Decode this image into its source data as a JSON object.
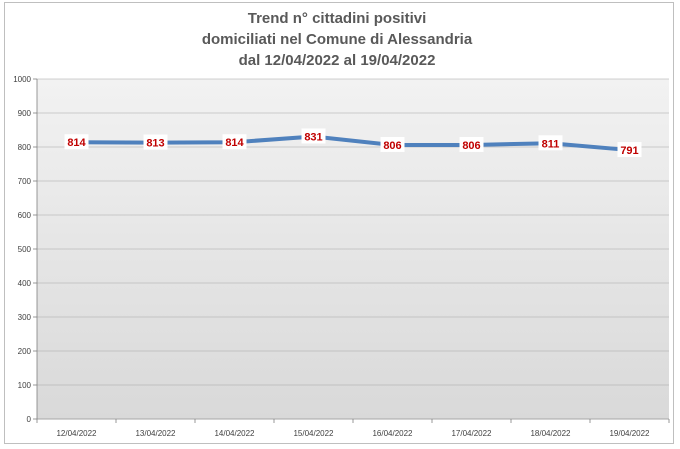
{
  "chart_data": {
    "type": "line",
    "title_lines": [
      "Trend n° cittadini positivi",
      "domiciliati nel Comune di Alessandria",
      "dal 12/04/2022 al 19/04/2022"
    ],
    "xlabel": "",
    "ylabel": "",
    "categories": [
      "12/04/2022",
      "13/04/2022",
      "14/04/2022",
      "15/04/2022",
      "16/04/2022",
      "17/04/2022",
      "18/04/2022",
      "19/04/2022"
    ],
    "series": [
      {
        "values": [
          814,
          813,
          814,
          831,
          806,
          806,
          811,
          791
        ]
      }
    ],
    "ylim": [
      0,
      1000
    ],
    "yticks": [
      0,
      100,
      200,
      300,
      400,
      500,
      600,
      700,
      800,
      900,
      1000
    ],
    "grid": true,
    "legend": "none",
    "colors": {
      "line": "#4f81bd",
      "label_text": "#c00000",
      "plot_bg_top": "#f2f2f2",
      "plot_bg_bottom": "#d9d9d9",
      "grid": "#a6a6a6"
    }
  }
}
